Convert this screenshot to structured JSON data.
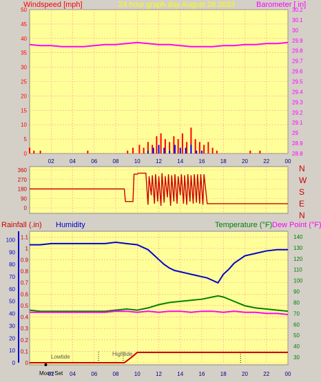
{
  "header": {
    "left_label": "Windspeed [mph]",
    "center_label": "24 hour graph day   August 26 2023",
    "right_label": "Barometer [ in]"
  },
  "colors": {
    "background": "#d4d0c8",
    "plot_bg": "#ffff99",
    "grid": "#ff9999",
    "wind": "#ff0000",
    "gust": "#0000ff",
    "wind_green": "#008000",
    "barometer": "#ff00ff",
    "direction": "#cc0000",
    "humidity": "#0000cc",
    "temperature": "#008000",
    "dewpoint": "#ff00ff",
    "rain": "#cc0000",
    "title_yellow": "#ffff00"
  },
  "compass": [
    "N",
    "W",
    "S",
    "E",
    "N"
  ],
  "lower_header": {
    "rain_label": "Rainfall (.in)",
    "humidity_label": "Humidity",
    "temp_label": "Temperature (°F)",
    "dew_label": "Dew Point (°F)"
  },
  "tide": {
    "low_label": "Lowtide",
    "high_label": "Hightide",
    "moon_label": "Moon Set"
  },
  "chart_data": [
    {
      "type": "line",
      "name": "wind-barometer",
      "x_ticks": [
        "02",
        "04",
        "06",
        "08",
        "10",
        "12",
        "14",
        "16",
        "18",
        "20",
        "22",
        "00"
      ],
      "y_left_ticks": [
        "0",
        "5",
        "10",
        "15",
        "20",
        "25",
        "30",
        "35",
        "40",
        "45",
        "50"
      ],
      "y_left_lim": [
        0,
        50
      ],
      "y_right_ticks": [
        "28.8",
        "28.9",
        "29",
        "29.1",
        "29.2",
        "29.3",
        "29.4",
        "29.5",
        "29.6",
        "29.7",
        "29.8",
        "29.9",
        "30",
        "30.1",
        "30.2"
      ],
      "y_right_lim": [
        28.8,
        30.2
      ],
      "series": [
        {
          "name": "Barometer",
          "axis": "right",
          "x": [
            0,
            1,
            2,
            3,
            4,
            5,
            6,
            7,
            8,
            9,
            10,
            11,
            12,
            13,
            14,
            15,
            16,
            17,
            18,
            19,
            20,
            21,
            22,
            23,
            24
          ],
          "y": [
            29.86,
            29.85,
            29.85,
            29.84,
            29.84,
            29.84,
            29.85,
            29.86,
            29.86,
            29.87,
            29.88,
            29.87,
            29.86,
            29.86,
            29.85,
            29.84,
            29.84,
            29.84,
            29.85,
            29.85,
            29.86,
            29.86,
            29.87,
            29.87,
            29.88
          ]
        },
        {
          "name": "Windspeed",
          "axis": "left",
          "x": [
            0,
            0.4,
            1.0,
            5.4,
            9.1,
            9.6,
            10.2,
            10.6,
            11.0,
            11.4,
            11.8,
            12.2,
            12.6,
            13.0,
            13.4,
            13.8,
            14.2,
            14.6,
            15.0,
            15.4,
            15.8,
            16.2,
            16.6,
            17.0,
            17.4,
            20.5,
            21.4
          ],
          "y": [
            2,
            1,
            1,
            1,
            1,
            2,
            3,
            2,
            4,
            3,
            6,
            7,
            5,
            4,
            6,
            5,
            7,
            4,
            9,
            5,
            4,
            3,
            4,
            2,
            1,
            1,
            1
          ]
        },
        {
          "name": "Gust",
          "axis": "left",
          "x": [
            11.0,
            11.5,
            12.0,
            12.5,
            13.0,
            13.5,
            14.0,
            14.5,
            15.0,
            15.5,
            16.0
          ],
          "y": [
            1,
            2,
            3,
            2,
            1,
            3,
            2,
            2,
            3,
            1,
            1
          ]
        }
      ]
    },
    {
      "type": "line",
      "name": "wind-direction",
      "y_ticks": [
        "0",
        "90",
        "180",
        "270",
        "360"
      ],
      "y_lim": [
        0,
        360
      ],
      "series": [
        {
          "name": "Direction",
          "x": [
            0,
            8.8,
            8.9,
            9.6,
            9.7,
            10.0,
            10.1,
            10.8,
            11.0,
            11.1,
            11.3,
            11.4,
            11.6,
            11.7,
            11.9,
            12.0,
            12.2,
            12.3,
            12.5,
            12.6,
            12.8,
            12.9,
            13.1,
            13.2,
            13.4,
            13.5,
            13.7,
            13.8,
            14.0,
            14.1,
            14.3,
            14.4,
            14.6,
            14.7,
            14.9,
            15.0,
            15.2,
            15.3,
            15.5,
            15.6,
            15.8,
            15.9,
            16.1,
            16.2,
            16.5,
            24
          ],
          "y": [
            180,
            180,
            60,
            60,
            320,
            320,
            330,
            330,
            30,
            300,
            120,
            310,
            40,
            320,
            60,
            300,
            20,
            330,
            50,
            300,
            100,
            320,
            20,
            310,
            60,
            320,
            40,
            300,
            120,
            320,
            40,
            310,
            30,
            320,
            60,
            310,
            40,
            320,
            50,
            320,
            40,
            320,
            30,
            320,
            40,
            40
          ]
        }
      ]
    },
    {
      "type": "line",
      "name": "temp-humidity-rain",
      "x_ticks": [
        "02",
        "04",
        "06",
        "08",
        "10",
        "12",
        "14",
        "16",
        "18",
        "20",
        "22",
        "00"
      ],
      "y_left_ticks": [
        "0",
        "0.1",
        "0.2",
        "0.3",
        "0.4",
        "0.5",
        "0.6",
        "0.7",
        "0.8",
        "0.9",
        "1",
        "1.1"
      ],
      "y_left_lim": [
        0,
        1.15
      ],
      "y_humidity_ticks": [
        "0",
        "10",
        "20",
        "30",
        "40",
        "50",
        "60",
        "70",
        "80",
        "90",
        "100"
      ],
      "y_humidity_lim": [
        0,
        107
      ],
      "y_right_ticks": [
        "30",
        "40",
        "50",
        "60",
        "70",
        "80",
        "90",
        "100",
        "110",
        "120",
        "130",
        "140"
      ],
      "y_right_lim": [
        25,
        145
      ],
      "series": [
        {
          "name": "Humidity",
          "axis": "humidity",
          "x": [
            0,
            1,
            2,
            3,
            4,
            5,
            6,
            7,
            8,
            9,
            10,
            11,
            11.5,
            12,
            12.5,
            13,
            13.5,
            14,
            14.5,
            15,
            15.5,
            16,
            16.5,
            17,
            17.5,
            18,
            18.5,
            19,
            19.5,
            20,
            21,
            22,
            23,
            24
          ],
          "y": [
            96,
            96,
            97,
            97,
            97,
            97,
            97,
            97,
            98,
            97,
            96,
            92,
            88,
            84,
            80,
            77,
            75,
            74,
            73,
            72,
            71,
            70,
            69,
            67,
            65,
            72,
            76,
            81,
            84,
            87,
            89,
            91,
            92,
            92
          ]
        },
        {
          "name": "Temperature",
          "axis": "right",
          "x": [
            0,
            1,
            2,
            3,
            4,
            5,
            6,
            7,
            8,
            9,
            10,
            11,
            12,
            13,
            14,
            15,
            16,
            17,
            17.5,
            18,
            19,
            20,
            21,
            22,
            23,
            24
          ],
          "y": [
            73,
            72,
            72,
            72,
            72,
            72,
            72,
            72,
            73,
            74,
            73,
            75,
            78,
            80,
            81,
            82,
            83,
            85,
            86,
            85,
            81,
            77,
            75,
            74,
            73,
            72
          ]
        },
        {
          "name": "Dew Point",
          "axis": "right",
          "x": [
            0,
            1,
            2,
            3,
            4,
            5,
            6,
            7,
            8,
            9,
            10,
            11,
            12,
            13,
            14,
            15,
            16,
            17,
            18,
            19,
            20,
            21,
            22,
            23,
            24
          ],
          "y": [
            71,
            71,
            71,
            71,
            71,
            71,
            71,
            71,
            72,
            72,
            71,
            72,
            71,
            72,
            72,
            71,
            72,
            72,
            71,
            72,
            71,
            71,
            70,
            70,
            69
          ]
        },
        {
          "name": "Rainfall",
          "axis": "left",
          "x": [
            0,
            8.8,
            9.5,
            10.0,
            16,
            24
          ],
          "y": [
            0,
            0,
            0.05,
            0.09,
            0.09,
            0.09
          ]
        }
      ]
    }
  ]
}
